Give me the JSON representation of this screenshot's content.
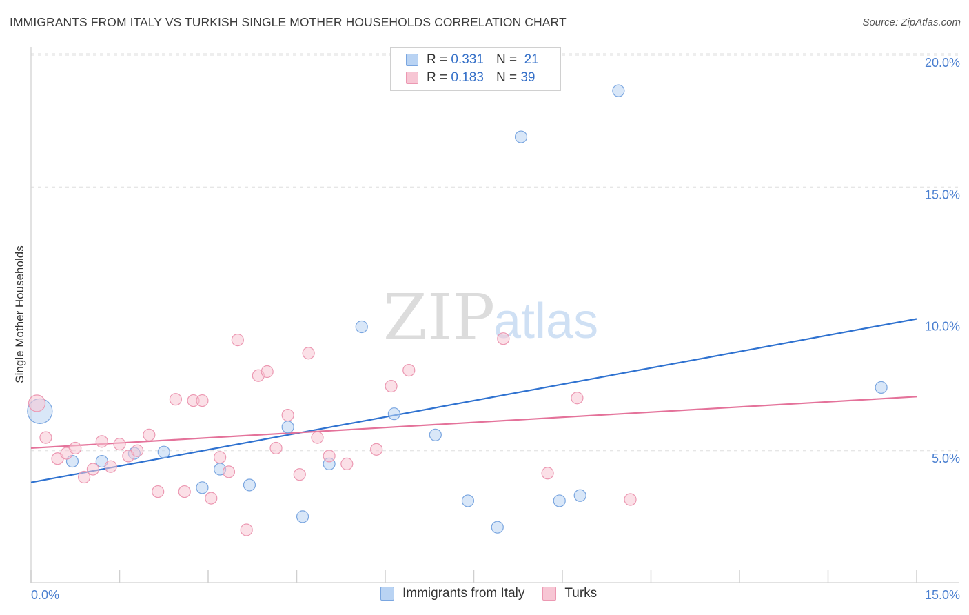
{
  "title": "IMMIGRANTS FROM ITALY VS TURKISH SINGLE MOTHER HOUSEHOLDS CORRELATION CHART",
  "source": "Source: ZipAtlas.com",
  "watermark": {
    "zip": "ZIP",
    "atlas": "atlas"
  },
  "colors": {
    "blue_fill": "#b9d3f3",
    "blue_edge": "#7aa6e0",
    "blue_line": "#2f72d0",
    "pink_fill": "#f7c6d4",
    "pink_edge": "#ec98b2",
    "pink_line": "#e4729a",
    "grid": "#dddddd",
    "tick_label": "#4a7fd0"
  },
  "legend": {
    "rows": [
      {
        "r_label": "R =",
        "r_value": "0.331",
        "n_label": "N =",
        "n_value": "21"
      },
      {
        "r_label": "R =",
        "r_value": "0.183",
        "n_label": "N =",
        "n_value": "39"
      }
    ]
  },
  "bottom_legend": [
    "Immigrants from Italy",
    "Turks"
  ],
  "chart_data": {
    "type": "scatter",
    "title": "IMMIGRANTS FROM ITALY VS TURKISH SINGLE MOTHER HOUSEHOLDS CORRELATION CHART",
    "xlabel": "",
    "ylabel": "Single Mother Households",
    "xlim": [
      0,
      15
    ],
    "ylim": [
      0,
      20
    ],
    "x_tick_labels": [
      "0.0%",
      "15.0%"
    ],
    "y_ticks": [
      5,
      10,
      15,
      20
    ],
    "y_tick_labels": [
      "5.0%",
      "10.0%",
      "15.0%",
      "20.0%"
    ],
    "grid": true,
    "series": [
      {
        "name": "Immigrants from Italy",
        "color": "blue",
        "r": 0.331,
        "n": 21,
        "trend": {
          "x": [
            0,
            15
          ],
          "y": [
            3.8,
            10.0
          ]
        },
        "points": [
          {
            "x": 0.15,
            "y": 6.5,
            "size": "large"
          },
          {
            "x": 0.7,
            "y": 4.6
          },
          {
            "x": 1.2,
            "y": 4.6
          },
          {
            "x": 1.75,
            "y": 4.9
          },
          {
            "x": 2.25,
            "y": 4.95
          },
          {
            "x": 2.9,
            "y": 3.6
          },
          {
            "x": 3.2,
            "y": 4.3
          },
          {
            "x": 3.7,
            "y": 3.7
          },
          {
            "x": 4.35,
            "y": 5.9
          },
          {
            "x": 4.6,
            "y": 2.5
          },
          {
            "x": 5.05,
            "y": 4.5
          },
          {
            "x": 5.6,
            "y": 9.7
          },
          {
            "x": 6.15,
            "y": 6.4
          },
          {
            "x": 6.85,
            "y": 5.6
          },
          {
            "x": 7.4,
            "y": 3.1
          },
          {
            "x": 7.9,
            "y": 2.1
          },
          {
            "x": 8.3,
            "y": 16.9
          },
          {
            "x": 8.95,
            "y": 3.1
          },
          {
            "x": 9.3,
            "y": 3.3
          },
          {
            "x": 9.95,
            "y": 18.65
          },
          {
            "x": 14.4,
            "y": 7.4
          }
        ]
      },
      {
        "name": "Turks",
        "color": "pink",
        "r": 0.183,
        "n": 39,
        "trend": {
          "x": [
            0,
            15
          ],
          "y": [
            5.1,
            7.05
          ]
        },
        "points": [
          {
            "x": 0.1,
            "y": 6.8,
            "size": "medium"
          },
          {
            "x": 0.25,
            "y": 5.5
          },
          {
            "x": 0.45,
            "y": 4.7
          },
          {
            "x": 0.6,
            "y": 4.9
          },
          {
            "x": 0.75,
            "y": 5.1
          },
          {
            "x": 0.9,
            "y": 4.0
          },
          {
            "x": 1.05,
            "y": 4.3
          },
          {
            "x": 1.2,
            "y": 5.35
          },
          {
            "x": 1.35,
            "y": 4.4
          },
          {
            "x": 1.5,
            "y": 5.25
          },
          {
            "x": 1.65,
            "y": 4.8
          },
          {
            "x": 1.8,
            "y": 5.0
          },
          {
            "x": 2.0,
            "y": 5.6
          },
          {
            "x": 2.15,
            "y": 3.45
          },
          {
            "x": 2.45,
            "y": 6.95
          },
          {
            "x": 2.6,
            "y": 3.45
          },
          {
            "x": 2.75,
            "y": 6.9
          },
          {
            "x": 2.9,
            "y": 6.9
          },
          {
            "x": 3.05,
            "y": 3.2
          },
          {
            "x": 3.2,
            "y": 4.75
          },
          {
            "x": 3.35,
            "y": 4.2
          },
          {
            "x": 3.5,
            "y": 9.2
          },
          {
            "x": 3.65,
            "y": 2.0
          },
          {
            "x": 3.85,
            "y": 7.85
          },
          {
            "x": 4.0,
            "y": 8.0
          },
          {
            "x": 4.15,
            "y": 5.1
          },
          {
            "x": 4.35,
            "y": 6.35
          },
          {
            "x": 4.55,
            "y": 4.1
          },
          {
            "x": 4.7,
            "y": 8.7
          },
          {
            "x": 4.85,
            "y": 5.5
          },
          {
            "x": 5.05,
            "y": 4.8
          },
          {
            "x": 5.35,
            "y": 4.5
          },
          {
            "x": 5.85,
            "y": 5.05
          },
          {
            "x": 6.1,
            "y": 7.45
          },
          {
            "x": 6.4,
            "y": 8.05
          },
          {
            "x": 8.0,
            "y": 9.25
          },
          {
            "x": 8.75,
            "y": 4.15
          },
          {
            "x": 9.25,
            "y": 7.0
          },
          {
            "x": 10.15,
            "y": 3.15
          }
        ]
      }
    ]
  }
}
